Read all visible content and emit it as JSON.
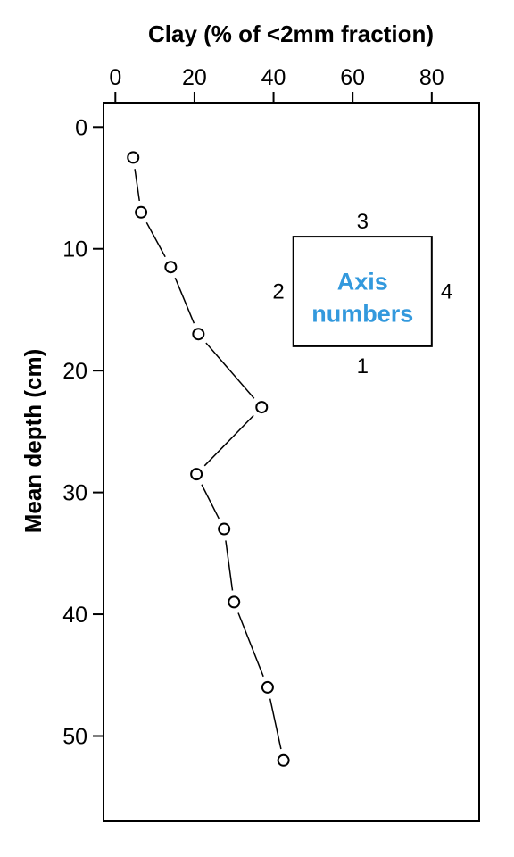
{
  "chart_data": {
    "type": "line",
    "xlabel": "Clay (% of <2mm fraction)",
    "ylabel": "Mean depth (cm)",
    "x_axis_position": "top",
    "y_axis_reversed": true,
    "xlim": [
      -3,
      92
    ],
    "ylim": [
      57,
      -2
    ],
    "x_ticks": [
      "0",
      "20",
      "40",
      "60",
      "80"
    ],
    "y_ticks": [
      "0",
      "10",
      "20",
      "30",
      "40",
      "50"
    ],
    "grid": false,
    "marker": "open-circle",
    "series": [
      {
        "x": [
          4.5,
          6.5,
          14,
          21,
          37,
          20.5,
          27.5,
          30,
          38.5,
          42.5
        ],
        "y": [
          2.5,
          7,
          11.5,
          17,
          23,
          28.5,
          33,
          39,
          46,
          52
        ]
      }
    ],
    "annotation": {
      "label_line1": "Axis",
      "label_line2": "numbers",
      "label_color": "#3399dd",
      "side_bottom": "1",
      "side_left": "2",
      "side_top": "3",
      "side_right": "4",
      "x_range": [
        45,
        80
      ],
      "y_range": [
        9,
        18
      ]
    }
  }
}
